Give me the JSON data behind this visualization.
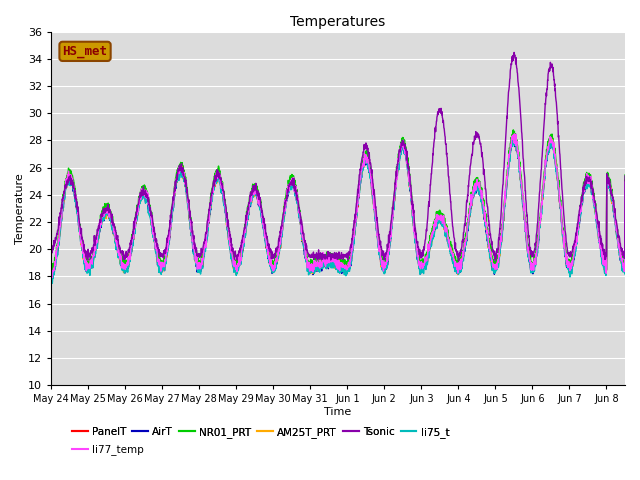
{
  "title": "Temperatures",
  "xlabel": "Time",
  "ylabel": "Temperature",
  "ylim": [
    10,
    36
  ],
  "yticks": [
    10,
    12,
    14,
    16,
    18,
    20,
    22,
    24,
    26,
    28,
    30,
    32,
    34,
    36
  ],
  "bg_color": "#dcdcdc",
  "fig_bg": "#ffffff",
  "series_order": [
    "PanelT",
    "AirT",
    "NR01_PRT",
    "AM25T_PRT",
    "li75_t",
    "li77_temp",
    "Tsonic"
  ],
  "series": {
    "PanelT": {
      "color": "#ff0000",
      "lw": 1.0
    },
    "AirT": {
      "color": "#0000bb",
      "lw": 1.0
    },
    "NR01_PRT": {
      "color": "#00cc00",
      "lw": 1.0
    },
    "AM25T_PRT": {
      "color": "#ffaa00",
      "lw": 1.0
    },
    "Tsonic": {
      "color": "#8800aa",
      "lw": 1.0
    },
    "li75_t": {
      "color": "#00bbbb",
      "lw": 1.0
    },
    "li77_temp": {
      "color": "#ff44ff",
      "lw": 1.0
    }
  },
  "legend_order": [
    "PanelT",
    "AirT",
    "NR01_PRT",
    "AM25T_PRT",
    "Tsonic",
    "li75_t",
    "li77_temp"
  ],
  "annotation": {
    "text": "HS_met",
    "fontsize": 9,
    "color": "#8b0000",
    "bg": "#cc9900",
    "border_color": "#8b4500"
  },
  "xtick_labels": [
    "May 24",
    "May 25",
    "May 26",
    "May 27",
    "May 28",
    "May 29",
    "May 30",
    "May 31",
    "Jun 1",
    "Jun 2",
    "Jun 3",
    "Jun 4",
    "Jun 5",
    "Jun 6",
    "Jun 7",
    "Jun 8"
  ],
  "n_days": 15.5,
  "pts_per_day": 144,
  "base_peaks": [
    18.0,
    25.2,
    18.5,
    22.7,
    18.5,
    24.1,
    18.5,
    25.8,
    18.5,
    25.3,
    18.5,
    24.2,
    18.5,
    24.8,
    18.5,
    19.0,
    18.5,
    26.5,
    18.5,
    27.5,
    18.5,
    22.2,
    18.5,
    24.6,
    18.5,
    28.0,
    18.5,
    27.8,
    18.5,
    25.0,
    18.5
  ],
  "tsonic_peaks": [
    20.0,
    25.2,
    19.5,
    23.0,
    19.5,
    24.2,
    19.5,
    26.0,
    19.5,
    25.5,
    19.5,
    24.5,
    19.5,
    24.9,
    19.5,
    19.5,
    19.5,
    27.5,
    19.5,
    27.8,
    19.5,
    30.3,
    19.5,
    28.5,
    19.5,
    34.2,
    19.5,
    33.5,
    19.5,
    25.2,
    19.5
  ],
  "base_min": 11.5,
  "tsonic_min": 18.0
}
